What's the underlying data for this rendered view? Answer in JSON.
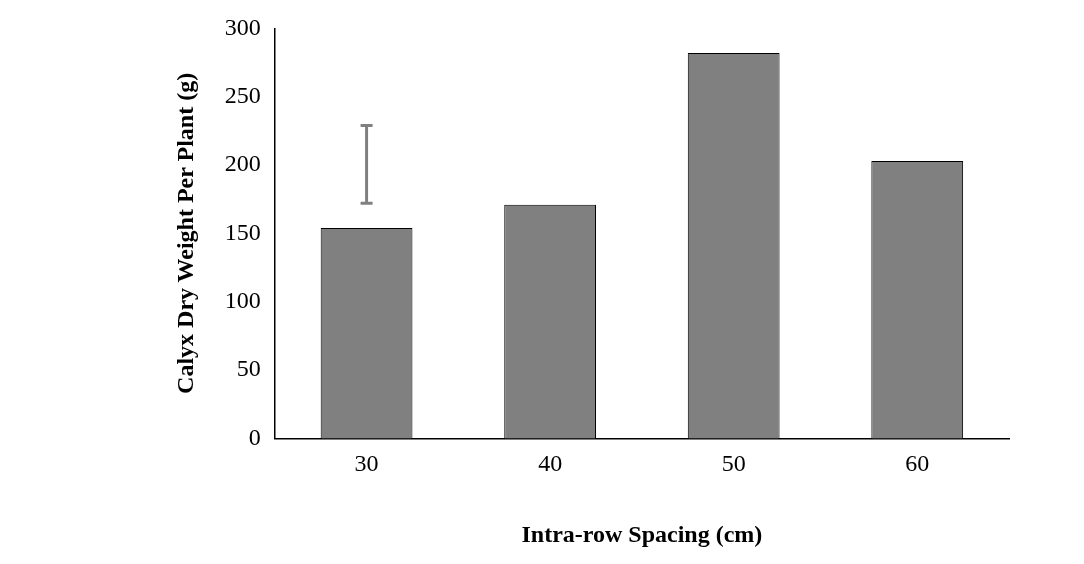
{
  "chart_data": {
    "type": "bar",
    "xlabel": "Intra-row Spacing (cm)",
    "ylabel": "Calyx Dry Weight Per Plant (g)",
    "categories": [
      "30",
      "40",
      "50",
      "60"
    ],
    "values": [
      154,
      171,
      282,
      203
    ],
    "errors": [
      [
        172,
        229
      ],
      null,
      null,
      null
    ],
    "color": "#808080",
    "ylim": [
      0,
      300
    ],
    "yticks": [
      0,
      50,
      100,
      150,
      200,
      250,
      300
    ],
    "grid": false,
    "legend": false
  }
}
